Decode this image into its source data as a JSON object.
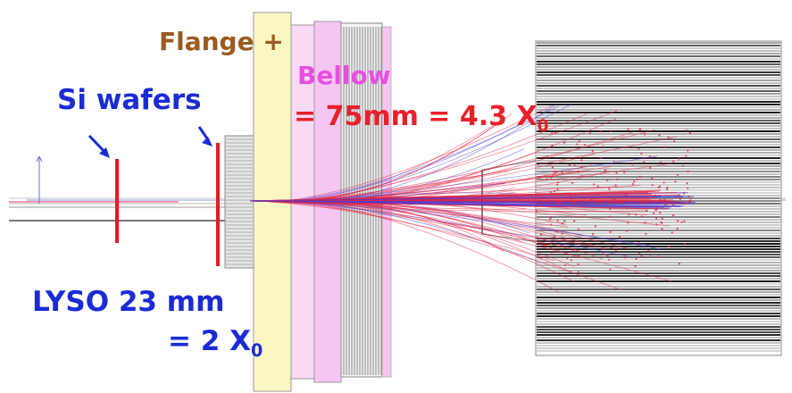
{
  "labels": {
    "flange": "Flange +",
    "bellow": "Bellow",
    "length": "= 75mm = 4.3 X",
    "length_sub": "0",
    "si_wafers": "Si wafers",
    "lyso": "LYSO 23 mm",
    "lyso_x0": "= 2 X",
    "lyso_x0_sub": "0"
  },
  "colors": {
    "flange_text": "#9a5b1f",
    "bellow_text": "#e84fe0",
    "length_text": "#e8202a",
    "si_text": "#1a2bd6",
    "lyso_text": "#1a2bd6",
    "wafer": "#e01b22",
    "flange_fill": "#fbf7c4",
    "bellow_fill": "#f6c6f2",
    "tracks_red": "#e8203a",
    "tracks_blue": "#4a3fd8",
    "detector_dark": "#111111"
  }
}
